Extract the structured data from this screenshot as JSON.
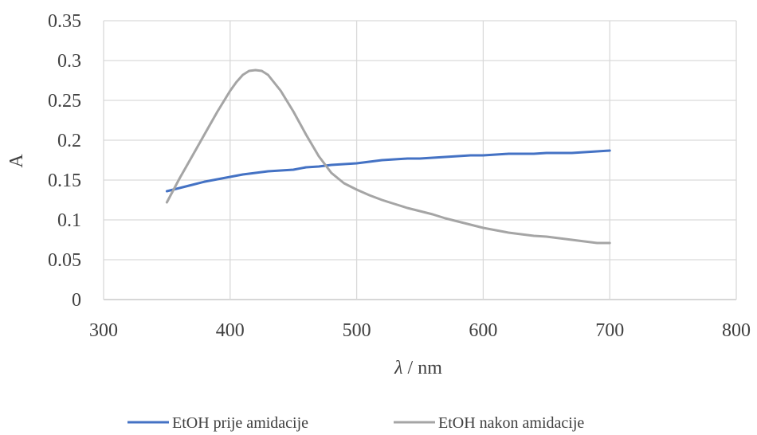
{
  "chart_data": {
    "type": "line",
    "title": "",
    "xlabel_symbol": "λ",
    "xlabel_unit": " / nm",
    "ylabel": "A",
    "xlim": [
      300,
      800
    ],
    "ylim": [
      0,
      0.35
    ],
    "x_ticks": [
      300,
      400,
      500,
      600,
      700,
      800
    ],
    "y_ticks": [
      0,
      0.05,
      0.1,
      0.15,
      0.2,
      0.25,
      0.3,
      0.35
    ],
    "x_tick_labels": [
      "300",
      "400",
      "500",
      "600",
      "700",
      "800"
    ],
    "y_tick_labels": [
      "0",
      "0.05",
      "0.1",
      "0.15",
      "0.2",
      "0.25",
      "0.3",
      "0.35"
    ],
    "grid": true,
    "legend_position": "bottom",
    "series": [
      {
        "name": "EtOH prije amidacije",
        "color": "#4472C4",
        "x": [
          350,
          360,
          370,
          380,
          390,
          400,
          410,
          420,
          430,
          440,
          450,
          460,
          470,
          480,
          490,
          500,
          510,
          520,
          530,
          540,
          550,
          560,
          570,
          580,
          590,
          600,
          610,
          620,
          630,
          640,
          650,
          660,
          670,
          680,
          690,
          700
        ],
        "y": [
          0.136,
          0.14,
          0.144,
          0.148,
          0.151,
          0.154,
          0.157,
          0.159,
          0.161,
          0.162,
          0.163,
          0.166,
          0.167,
          0.169,
          0.17,
          0.171,
          0.173,
          0.175,
          0.176,
          0.177,
          0.177,
          0.178,
          0.179,
          0.18,
          0.181,
          0.181,
          0.182,
          0.183,
          0.183,
          0.183,
          0.184,
          0.184,
          0.184,
          0.185,
          0.186,
          0.187
        ]
      },
      {
        "name": "EtOH nakon amidacije",
        "color": "#A5A5A5",
        "x": [
          350,
          360,
          370,
          380,
          390,
          400,
          405,
          410,
          415,
          420,
          425,
          430,
          440,
          450,
          460,
          470,
          480,
          490,
          500,
          510,
          520,
          530,
          540,
          550,
          560,
          570,
          580,
          590,
          600,
          610,
          620,
          630,
          640,
          650,
          660,
          670,
          680,
          690,
          700
        ],
        "y": [
          0.122,
          0.152,
          0.18,
          0.208,
          0.236,
          0.262,
          0.273,
          0.282,
          0.287,
          0.288,
          0.287,
          0.282,
          0.262,
          0.236,
          0.207,
          0.18,
          0.159,
          0.146,
          0.138,
          0.131,
          0.125,
          0.12,
          0.115,
          0.111,
          0.107,
          0.102,
          0.098,
          0.094,
          0.09,
          0.087,
          0.084,
          0.082,
          0.08,
          0.079,
          0.077,
          0.075,
          0.073,
          0.071,
          0.071
        ]
      }
    ]
  }
}
